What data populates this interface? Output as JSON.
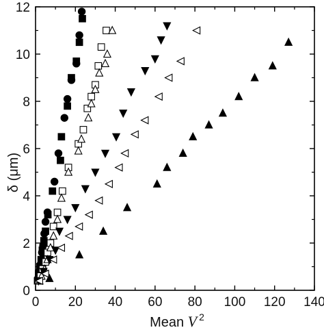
{
  "chart_data": {
    "type": "scatter",
    "title": "",
    "xlabel": {
      "prefix": "Mean ",
      "variable": "V",
      "superscript": "2"
    },
    "ylabel": "δ (μm)",
    "xlim": [
      0,
      140
    ],
    "ylim": [
      0,
      12
    ],
    "xticks": [
      0,
      20,
      40,
      60,
      80,
      100,
      120,
      140
    ],
    "yticks": [
      0,
      2,
      4,
      6,
      8,
      10,
      12
    ],
    "grid": false,
    "legend": "none",
    "series": [
      {
        "marker": "filled-circle",
        "color": "#000000",
        "points": [
          [
            1.2,
            0.5
          ],
          [
            1.8,
            0.8
          ],
          [
            2.5,
            1.1
          ],
          [
            3.2,
            1.6
          ],
          [
            3.8,
            1.9
          ],
          [
            4.4,
            2.4
          ],
          [
            5.0,
            2.9
          ],
          [
            6.0,
            3.3
          ],
          [
            9.5,
            4.6
          ],
          [
            11.5,
            5.8
          ],
          [
            14.5,
            7.3
          ],
          [
            16.0,
            8.1
          ],
          [
            18.0,
            8.9
          ],
          [
            20.5,
            9.6
          ],
          [
            22.0,
            10.8
          ],
          [
            23.2,
            11.8
          ]
        ]
      },
      {
        "marker": "filled-square",
        "color": "#000000",
        "points": [
          [
            1.0,
            0.4
          ],
          [
            1.5,
            0.7
          ],
          [
            2.2,
            1.0
          ],
          [
            2.8,
            1.3
          ],
          [
            3.4,
            1.7
          ],
          [
            4.2,
            2.1
          ],
          [
            5.0,
            2.5
          ],
          [
            6.2,
            3.2
          ],
          [
            8.5,
            4.2
          ],
          [
            12.5,
            5.5
          ],
          [
            13.0,
            6.5
          ],
          [
            16.0,
            7.8
          ],
          [
            18.0,
            9.0
          ],
          [
            20.5,
            9.7
          ],
          [
            22.0,
            10.5
          ],
          [
            23.5,
            11.5
          ]
        ]
      },
      {
        "marker": "open-square",
        "color": "#000000",
        "points": [
          [
            1.5,
            0.4
          ],
          [
            2.5,
            0.6
          ],
          [
            3.5,
            0.9
          ],
          [
            5.0,
            1.2
          ],
          [
            6.0,
            1.6
          ],
          [
            7.5,
            2.0
          ],
          [
            9.0,
            2.7
          ],
          [
            11.0,
            3.3
          ],
          [
            13.5,
            4.2
          ],
          [
            16.5,
            5.2
          ],
          [
            21.5,
            6.2
          ],
          [
            24.0,
            6.8
          ],
          [
            26.0,
            7.7
          ],
          [
            28.0,
            8.2
          ],
          [
            30.0,
            8.7
          ],
          [
            31.5,
            9.5
          ],
          [
            33.0,
            10.3
          ],
          [
            35.5,
            11.0
          ]
        ]
      },
      {
        "marker": "open-triangle-up",
        "color": "#000000",
        "points": [
          [
            2.0,
            0.4
          ],
          [
            3.0,
            0.6
          ],
          [
            4.5,
            0.9
          ],
          [
            6.0,
            1.3
          ],
          [
            7.5,
            1.8
          ],
          [
            9.0,
            2.3
          ],
          [
            11.0,
            3.0
          ],
          [
            13.0,
            3.9
          ],
          [
            16.5,
            5.0
          ],
          [
            21.5,
            5.9
          ],
          [
            23.0,
            6.4
          ],
          [
            26.5,
            7.3
          ],
          [
            28.0,
            7.9
          ],
          [
            30.0,
            8.5
          ],
          [
            32.0,
            9.2
          ],
          [
            35.0,
            9.6
          ],
          [
            36.0,
            10.0
          ],
          [
            38.5,
            11.0
          ]
        ]
      },
      {
        "marker": "filled-triangle-down",
        "color": "#000000",
        "points": [
          [
            1.5,
            0.4
          ],
          [
            4.0,
            0.8
          ],
          [
            7.0,
            1.3
          ],
          [
            10.0,
            1.7
          ],
          [
            12.0,
            2.5
          ],
          [
            16.0,
            3.0
          ],
          [
            20.0,
            3.5
          ],
          [
            25.0,
            4.3
          ],
          [
            30.0,
            5.0
          ],
          [
            35.0,
            5.8
          ],
          [
            40.5,
            6.5
          ],
          [
            44.0,
            7.5
          ],
          [
            48.0,
            8.4
          ],
          [
            55.0,
            9.3
          ],
          [
            60.0,
            9.8
          ],
          [
            63.0,
            10.6
          ],
          [
            66.0,
            11.2
          ]
        ]
      },
      {
        "marker": "open-triangle-left",
        "color": "#000000",
        "points": [
          [
            2.0,
            0.4
          ],
          [
            5.0,
            0.7
          ],
          [
            9.0,
            1.3
          ],
          [
            13.0,
            1.8
          ],
          [
            17.0,
            2.3
          ],
          [
            22.0,
            2.7
          ],
          [
            27.0,
            3.2
          ],
          [
            32.0,
            3.8
          ],
          [
            37.0,
            4.5
          ],
          [
            42.0,
            5.2
          ],
          [
            45.0,
            5.8
          ],
          [
            50.0,
            6.6
          ],
          [
            55.0,
            7.2
          ],
          [
            62.0,
            8.2
          ],
          [
            67.0,
            9.0
          ],
          [
            73.0,
            9.7
          ],
          [
            81.0,
            11.0
          ]
        ]
      },
      {
        "marker": "filled-triangle-up",
        "color": "#000000",
        "points": [
          [
            7.0,
            0.5
          ],
          [
            22.0,
            1.5
          ],
          [
            34.0,
            2.5
          ],
          [
            46.0,
            3.5
          ],
          [
            61.0,
            4.5
          ],
          [
            66.0,
            5.2
          ],
          [
            74.0,
            5.8
          ],
          [
            79.0,
            6.5
          ],
          [
            87.0,
            7.0
          ],
          [
            94.0,
            7.5
          ],
          [
            102.0,
            8.2
          ],
          [
            110.0,
            9.0
          ],
          [
            119.0,
            9.5
          ],
          [
            127.0,
            10.5
          ]
        ]
      }
    ]
  }
}
